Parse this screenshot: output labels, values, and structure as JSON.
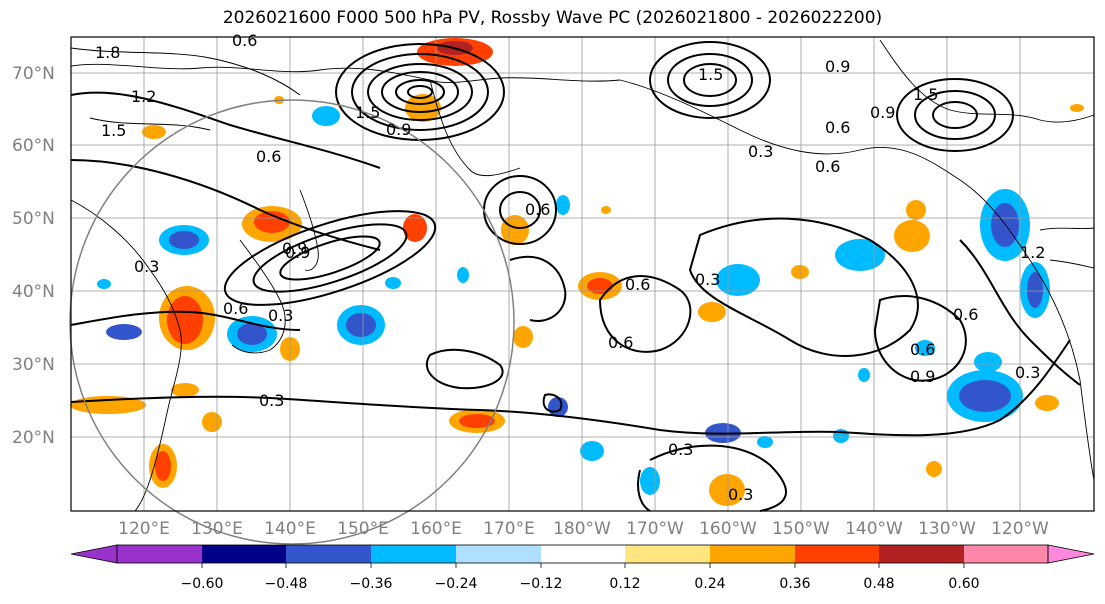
{
  "title": "2026021600 F000 500 hPa PV, Rossby Wave PC (2026021800 - 2026022200)",
  "map": {
    "lat_ticks": [
      "70°N",
      "60°N",
      "50°N",
      "40°N",
      "30°N",
      "20°N"
    ],
    "lon_ticks": [
      "120°E",
      "130°E",
      "140°E",
      "150°E",
      "160°E",
      "170°E",
      "180°W",
      "170°W",
      "160°W",
      "150°W",
      "140°W",
      "130°W",
      "120°W"
    ],
    "contour_labels": [
      "1.8",
      "0.6",
      "1.5",
      "1.2",
      "0.9",
      "1.5",
      "0.6",
      "0.3",
      "0.9",
      "0.6",
      "0.3",
      "0.3",
      "0.6",
      "0.3",
      "0.6",
      "0.6",
      "0.9",
      "0.3",
      "0.3",
      "1.2",
      "0.9",
      "0.6",
      "0.9",
      "1.5",
      "0.3",
      "0.6",
      "0.6",
      "0.6",
      "0.9",
      "0.3",
      "1.5"
    ]
  },
  "colorbar": {
    "ticks": [
      "−0.60",
      "−0.48",
      "−0.36",
      "−0.24",
      "−0.12",
      "0.12",
      "0.24",
      "0.36",
      "0.48",
      "0.60"
    ],
    "colors": [
      "#9933cc",
      "#000088",
      "#3355cc",
      "#00bbff",
      "#b0e0ff",
      "#ffffff",
      "#ffe680",
      "#ffa500",
      "#ff4000",
      "#b22222",
      "#ff88aa",
      "#ff88dd"
    ]
  }
}
